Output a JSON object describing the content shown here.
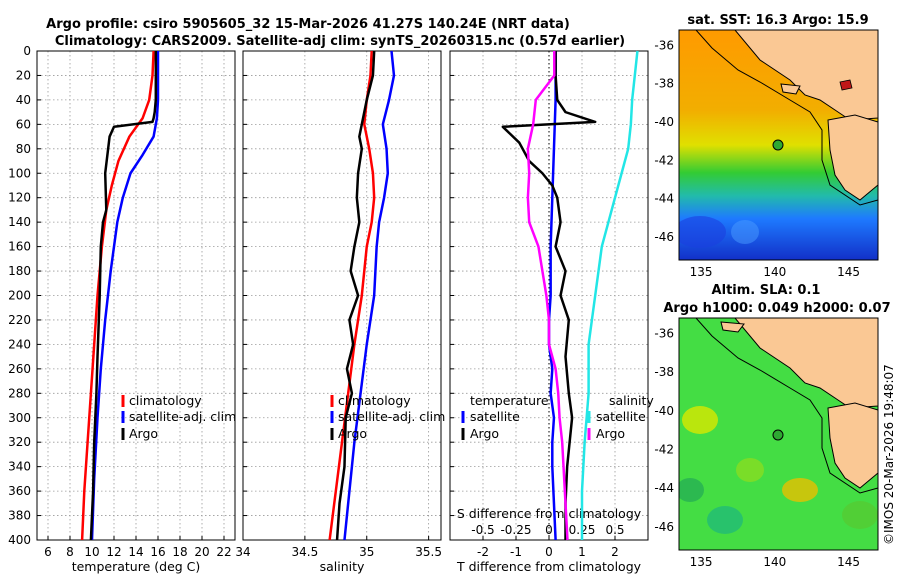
{
  "figure": {
    "title_line1": "Argo profile: csiro 5905605_32 15-Mar-2026 41.27S 140.24E (NRT data)",
    "title_line2": "Climatology: CARS2009. Satellite-adj clim: synTS_20260315.nc (0.57d earlier)",
    "watermark": "©IMOS 20-Mar-2026 19:48:07"
  },
  "colors": {
    "climatology": "#ff0000",
    "satellite": "#0000ff",
    "argo": "#000000",
    "sal_satellite": "#22e6e6",
    "sal_argo": "#ff00ff",
    "land": "#fac894"
  },
  "depth_axis": {
    "ticks": [
      "0",
      "20",
      "40",
      "60",
      "80",
      "100",
      "120",
      "140",
      "160",
      "180",
      "200",
      "220",
      "240",
      "260",
      "280",
      "300",
      "320",
      "340",
      "360",
      "380",
      "400"
    ]
  },
  "chart_data": [
    {
      "type": "line",
      "id": "temperature",
      "xlabel": "temperature (deg C)",
      "ylabel": "depth",
      "xlim": [
        5,
        23
      ],
      "ylim": [
        400,
        0
      ],
      "xticks": [
        "6",
        "8",
        "10",
        "12",
        "14",
        "16",
        "18",
        "20",
        "22"
      ],
      "legend": [
        "climatology",
        "satellite-adj. clim",
        "Argo"
      ],
      "series": [
        {
          "name": "climatology",
          "x": [
            15.6,
            15.5,
            15.2,
            14.6,
            13.4,
            12.4,
            11.8,
            11.3,
            10.9,
            10.5,
            10.2,
            9.9,
            9.6,
            9.3,
            9.1
          ],
          "depth": [
            0,
            20,
            40,
            55,
            70,
            90,
            110,
            130,
            160,
            200,
            240,
            280,
            320,
            360,
            400
          ]
        },
        {
          "name": "satellite-adj. clim",
          "x": [
            16.0,
            16.0,
            16.0,
            15.9,
            15.6,
            14.6,
            13.5,
            12.8,
            12.3,
            11.7,
            11.2,
            10.8,
            10.5,
            10.2,
            10.0
          ],
          "depth": [
            0,
            20,
            40,
            55,
            70,
            85,
            100,
            120,
            140,
            180,
            220,
            260,
            300,
            350,
            400
          ]
        },
        {
          "name": "Argo",
          "x": [
            15.8,
            15.8,
            15.8,
            15.7,
            15.6,
            15.5,
            12.0,
            11.6,
            11.2,
            11.3,
            11.0,
            10.8,
            10.7,
            10.5,
            10.4,
            10.2,
            10.1,
            9.9
          ],
          "depth": [
            0,
            20,
            40,
            50,
            55,
            58,
            62,
            70,
            100,
            130,
            140,
            160,
            200,
            250,
            280,
            320,
            360,
            400
          ]
        }
      ]
    },
    {
      "type": "line",
      "id": "salinity",
      "xlabel": "salinity",
      "ylabel": "depth",
      "xlim": [
        34,
        35.6
      ],
      "ylim": [
        400,
        0
      ],
      "xticks": [
        "34",
        "34.5",
        "35",
        "35.5"
      ],
      "legend": [
        "climatology",
        "satellite-adj. clim",
        "Argo"
      ],
      "series": [
        {
          "name": "climatology",
          "x": [
            35.04,
            35.03,
            35.0,
            34.98,
            35.02,
            35.05,
            35.06,
            35.04,
            35.0,
            34.96,
            34.9,
            34.85,
            34.8,
            34.75,
            34.7
          ],
          "depth": [
            0,
            20,
            40,
            60,
            80,
            100,
            120,
            140,
            160,
            200,
            240,
            280,
            320,
            360,
            400
          ]
        },
        {
          "name": "satellite-adj. clim",
          "x": [
            35.2,
            35.22,
            35.18,
            35.13,
            35.16,
            35.17,
            35.14,
            35.1,
            35.08,
            35.06,
            35.0,
            34.95,
            34.9,
            34.86,
            34.82
          ],
          "depth": [
            0,
            20,
            40,
            60,
            80,
            100,
            120,
            140,
            160,
            200,
            240,
            280,
            320,
            360,
            400
          ]
        },
        {
          "name": "Argo",
          "x": [
            35.06,
            35.05,
            35.0,
            34.94,
            34.96,
            34.93,
            34.92,
            34.94,
            34.9,
            34.87,
            34.93,
            34.86,
            34.89,
            34.84,
            34.88,
            34.83,
            34.82,
            34.78,
            34.76
          ],
          "depth": [
            0,
            20,
            40,
            70,
            80,
            100,
            120,
            140,
            160,
            180,
            200,
            220,
            240,
            260,
            280,
            300,
            340,
            370,
            400
          ]
        }
      ]
    },
    {
      "type": "line",
      "id": "difference",
      "xlabel": "T difference from climatology",
      "ylabel": "depth",
      "xlim": [
        -3,
        3
      ],
      "ylim": [
        400,
        0
      ],
      "xticks": [
        "-2",
        "-1",
        "0",
        "1",
        "2"
      ],
      "top_axis_label": "S difference from climatology",
      "top_xticks": [
        "-0.5",
        "-0.25",
        "0",
        "0.25",
        "0.5"
      ],
      "legend_temperature_title": "temperature",
      "legend_salinity_title": "salinity",
      "legend_temperature": [
        "satellite",
        "Argo"
      ],
      "legend_salinity": [
        "satellite",
        "Argo"
      ],
      "series": [
        {
          "name": "T satellite",
          "x": [
            0.2,
            0.2,
            0.15,
            0.1,
            0.05,
            0.05,
            0.0,
            0.0,
            0.1,
            0.05,
            0.15,
            0.1,
            0.1,
            0.15,
            0.2
          ],
          "depth": [
            0,
            40,
            80,
            120,
            160,
            200,
            220,
            240,
            260,
            280,
            300,
            320,
            340,
            370,
            400
          ]
        },
        {
          "name": "T Argo",
          "x": [
            0.2,
            0.2,
            0.25,
            0.5,
            1.4,
            -1.4,
            -0.9,
            -0.6,
            -0.2,
            0.1,
            0.25,
            0.35,
            0.2,
            0.5,
            0.35,
            0.6,
            0.5,
            0.6,
            0.7,
            0.55,
            0.5,
            0.5
          ],
          "depth": [
            0,
            20,
            40,
            50,
            58,
            62,
            75,
            90,
            100,
            110,
            120,
            140,
            160,
            180,
            200,
            220,
            250,
            280,
            300,
            340,
            370,
            400
          ]
        },
        {
          "name": "S satellite",
          "x": [
            0.67,
            0.65,
            0.63,
            0.62,
            0.6,
            0.55,
            0.5,
            0.45,
            0.4,
            0.35,
            0.3,
            0.3,
            0.27,
            0.25,
            0.25
          ],
          "depth": [
            0,
            20,
            40,
            60,
            80,
            100,
            120,
            140,
            160,
            200,
            240,
            280,
            320,
            360,
            400
          ]
        },
        {
          "name": "S Argo",
          "x": [
            0.04,
            0.04,
            -0.1,
            -0.12,
            -0.16,
            -0.15,
            -0.16,
            -0.15,
            -0.08,
            -0.02,
            0.0,
            0.0,
            0.05,
            0.07,
            0.08,
            0.1,
            0.12,
            0.14
          ],
          "depth": [
            0,
            20,
            40,
            60,
            80,
            100,
            120,
            140,
            160,
            200,
            220,
            240,
            260,
            280,
            300,
            320,
            360,
            400
          ]
        }
      ]
    },
    {
      "type": "heatmap",
      "id": "sst-map",
      "title": "sat. SST: 16.3 Argo: 15.9",
      "xticks": [
        "135",
        "140",
        "145"
      ],
      "yticks": [
        "-36",
        "-38",
        "-40",
        "-42",
        "-44",
        "-46"
      ],
      "xlim": [
        133.5,
        147
      ],
      "ylim": [
        -47.2,
        -35.2
      ],
      "argo_marker": [
        140.24,
        -41.27
      ]
    },
    {
      "type": "heatmap",
      "id": "sla-map",
      "title_line1": "Altim. SLA: 0.1",
      "title_line2": "Argo h1000: 0.049 h2000: 0.07",
      "xticks": [
        "135",
        "140",
        "145"
      ],
      "yticks": [
        "-36",
        "-38",
        "-40",
        "-42",
        "-44",
        "-46"
      ],
      "xlim": [
        133.5,
        147
      ],
      "ylim": [
        -47.2,
        -35.2
      ],
      "argo_marker": [
        140.24,
        -41.27
      ]
    }
  ]
}
